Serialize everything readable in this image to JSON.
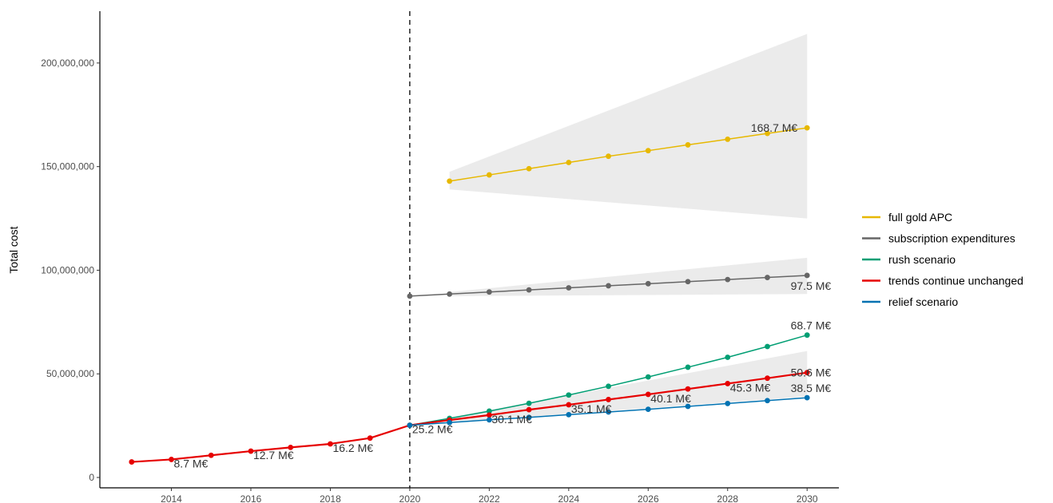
{
  "chart_data": {
    "type": "line",
    "title": "",
    "xlabel": "",
    "ylabel": "Total cost",
    "xlim": [
      2012.2,
      2030.8
    ],
    "ylim": [
      -5000000,
      225000000
    ],
    "x_ticks": [
      2014,
      2016,
      2018,
      2020,
      2022,
      2024,
      2026,
      2028,
      2030
    ],
    "x_tick_labels": [
      "2014",
      "2016",
      "2018",
      "2020",
      "2022",
      "2024",
      "2026",
      "2028",
      "2030"
    ],
    "y_ticks": [
      0,
      50000000,
      100000000,
      150000000,
      200000000
    ],
    "y_tick_labels": [
      "0",
      "50,000,000",
      "100,000,000",
      "150,000,000",
      "200,000,000"
    ],
    "grid": false,
    "legend_position": "right",
    "vline": {
      "x": 2020,
      "style": "dashed"
    },
    "series": [
      {
        "name": "full gold APC",
        "color": "#E7B800",
        "x": [
          2021,
          2022,
          2023,
          2024,
          2025,
          2026,
          2027,
          2028,
          2029,
          2030
        ],
        "values": [
          143000000,
          146000000,
          149000000,
          152000000,
          155000000,
          157700000,
          160500000,
          163200000,
          166000000,
          168700000
        ],
        "band": {
          "x": [
            2021,
            2030
          ],
          "lower": [
            139000000,
            125000000
          ],
          "upper": [
            147500000,
            214000000
          ]
        }
      },
      {
        "name": "subscription expenditures",
        "color": "#666666",
        "x": [
          2020,
          2021,
          2022,
          2023,
          2024,
          2025,
          2026,
          2027,
          2028,
          2029,
          2030
        ],
        "values": [
          87500000,
          88500000,
          89500000,
          90500000,
          91500000,
          92500000,
          93500000,
          94500000,
          95500000,
          96500000,
          97500000
        ],
        "band": {
          "x": [
            2021,
            2030
          ],
          "lower": [
            87500000,
            88500000
          ],
          "upper": [
            89500000,
            106000000
          ]
        }
      },
      {
        "name": "rush scenario",
        "color": "#009E73",
        "x": [
          2020,
          2021,
          2022,
          2023,
          2024,
          2025,
          2026,
          2027,
          2028,
          2029,
          2030
        ],
        "values": [
          25200000,
          28500000,
          32000000,
          35800000,
          39800000,
          44000000,
          48500000,
          53200000,
          58000000,
          63200000,
          68700000
        ],
        "band": null
      },
      {
        "name": "trends continue unchanged",
        "color": "#E60000",
        "x": [
          2013,
          2014,
          2015,
          2016,
          2017,
          2018,
          2019,
          2020,
          2021,
          2022,
          2023,
          2024,
          2025,
          2026,
          2027,
          2028,
          2029,
          2030
        ],
        "values": [
          7500000,
          8700000,
          10700000,
          12700000,
          14500000,
          16200000,
          19000000,
          25200000,
          27700000,
          30100000,
          32700000,
          35100000,
          37600000,
          40100000,
          42700000,
          45300000,
          47900000,
          50600000
        ],
        "band": {
          "x": [
            2021,
            2030
          ],
          "lower": [
            26500000,
            39000000
          ],
          "upper": [
            29000000,
            61000000
          ]
        }
      },
      {
        "name": "relief scenario",
        "color": "#0072B2",
        "x": [
          2020,
          2021,
          2022,
          2023,
          2024,
          2025,
          2026,
          2027,
          2028,
          2029,
          2030
        ],
        "values": [
          25200000,
          26500000,
          27800000,
          29000000,
          30300000,
          31600000,
          32900000,
          34300000,
          35700000,
          37100000,
          38500000
        ],
        "band": null
      }
    ],
    "annotations": [
      {
        "x": 2014,
        "y": 8700000,
        "text": "8.7 M€"
      },
      {
        "x": 2016,
        "y": 12700000,
        "text": "12.7 M€"
      },
      {
        "x": 2018,
        "y": 16200000,
        "text": "16.2 M€"
      },
      {
        "x": 2020,
        "y": 25200000,
        "text": "25.2 M€"
      },
      {
        "x": 2022,
        "y": 30100000,
        "text": "30.1 M€"
      },
      {
        "x": 2024,
        "y": 35100000,
        "text": "35.1 M€"
      },
      {
        "x": 2026,
        "y": 40100000,
        "text": "40.1 M€"
      },
      {
        "x": 2028,
        "y": 45300000,
        "text": "45.3 M€"
      },
      {
        "x": 2030,
        "y": 50600000,
        "text": "50.6 M€"
      },
      {
        "x": 2030,
        "y": 38500000,
        "text": "38.5 M€"
      },
      {
        "x": 2030,
        "y": 68700000,
        "text": "68.7 M€"
      },
      {
        "x": 2030,
        "y": 97500000,
        "text": "97.5 M€"
      },
      {
        "x": 2030,
        "y": 168700000,
        "text": "168.7 M€"
      }
    ],
    "legend": [
      "full gold APC",
      "subscription expenditures",
      "rush scenario",
      "trends continue unchanged",
      "relief scenario"
    ]
  }
}
